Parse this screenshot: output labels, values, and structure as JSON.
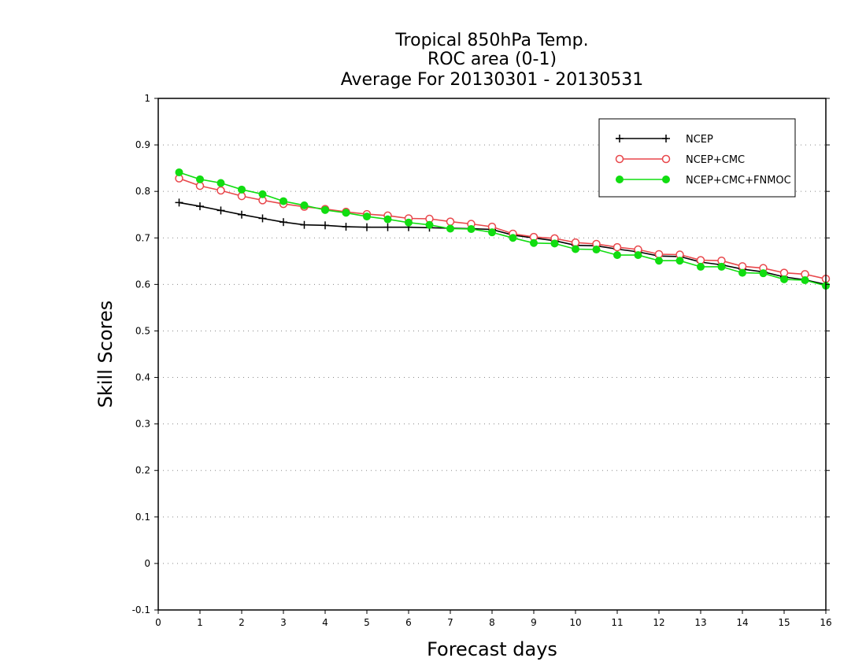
{
  "chart_data": {
    "type": "line",
    "title_lines": [
      "Tropical 850hPa Temp.",
      "ROC area (0-1)",
      "Average For 20130301 - 20130531"
    ],
    "xlabel": "Forecast days",
    "ylabel": "Skill Scores",
    "xlim": [
      0,
      16
    ],
    "ylim": [
      -0.1,
      1
    ],
    "x_ticks": [
      "0",
      "1",
      "2",
      "3",
      "4",
      "5",
      "6",
      "7",
      "8",
      "9",
      "10",
      "11",
      "12",
      "13",
      "14",
      "15",
      "16"
    ],
    "y_ticks": [
      "1",
      "0.9",
      "0.8",
      "0.7",
      "0.6",
      "0.5",
      "0.4",
      "0.3",
      "0.2",
      "0.1",
      "0",
      "-0.1"
    ],
    "grid": "horizontal dotted",
    "legend_position": "top-right",
    "x": [
      0.5,
      1,
      1.5,
      2,
      2.5,
      3,
      3.5,
      4,
      4.5,
      5,
      5.5,
      6,
      6.5,
      7,
      7.5,
      8,
      8.5,
      9,
      9.5,
      10,
      10.5,
      11,
      11.5,
      12,
      12.5,
      13,
      13.5,
      14,
      14.5,
      15,
      15.5,
      16
    ],
    "series": [
      {
        "name": "NCEP",
        "color": "#000000",
        "marker": "plus",
        "values": [
          0.776,
          0.768,
          0.759,
          0.75,
          0.742,
          0.734,
          0.728,
          0.727,
          0.724,
          0.723,
          0.723,
          0.723,
          0.722,
          0.721,
          0.72,
          0.718,
          0.706,
          0.7,
          0.694,
          0.684,
          0.683,
          0.676,
          0.67,
          0.661,
          0.66,
          0.648,
          0.642,
          0.633,
          0.627,
          0.616,
          0.61,
          0.6
        ]
      },
      {
        "name": "NCEP+CMC",
        "color": "#e8474b",
        "marker": "open-circle",
        "values": [
          0.828,
          0.812,
          0.802,
          0.79,
          0.781,
          0.773,
          0.767,
          0.762,
          0.756,
          0.751,
          0.748,
          0.742,
          0.741,
          0.735,
          0.73,
          0.724,
          0.709,
          0.702,
          0.699,
          0.69,
          0.687,
          0.68,
          0.675,
          0.665,
          0.664,
          0.652,
          0.651,
          0.639,
          0.635,
          0.625,
          0.622,
          0.612
        ]
      },
      {
        "name": "NCEP+CMC+FNMOC",
        "color": "#11dd11",
        "marker": "filled-circle",
        "values": [
          0.841,
          0.826,
          0.818,
          0.804,
          0.794,
          0.779,
          0.77,
          0.76,
          0.754,
          0.746,
          0.74,
          0.733,
          0.728,
          0.72,
          0.719,
          0.712,
          0.7,
          0.689,
          0.688,
          0.676,
          0.675,
          0.663,
          0.663,
          0.651,
          0.651,
          0.638,
          0.638,
          0.625,
          0.624,
          0.611,
          0.609,
          0.597
        ]
      }
    ]
  }
}
